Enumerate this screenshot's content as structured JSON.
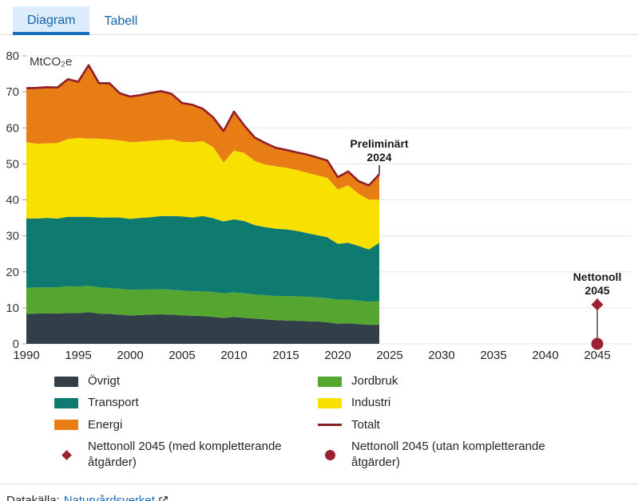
{
  "tabs": {
    "diagram": "Diagram",
    "tabell": "Tabell"
  },
  "colors": {
    "tab_blue": "#1565ad",
    "tab_active_bg": "#ddecfa",
    "tab_underline": "#1b6fbf",
    "link_blue": "#1a6cb5",
    "grid": "#e4e6e8",
    "total_red": "#8e2029",
    "marker_red": "#9b2233"
  },
  "chart_data": {
    "type": "area",
    "stacked": true,
    "title": "",
    "unit_label": "MtCO₂e",
    "xlabel": "",
    "ylabel": "MtCO₂e",
    "xlim": [
      1990,
      2046
    ],
    "ylim": [
      0,
      80
    ],
    "grid": true,
    "x_ticks": [
      1990,
      1995,
      2000,
      2005,
      2010,
      2015,
      2020,
      2025,
      2030,
      2035,
      2040,
      2045
    ],
    "y_ticks": [
      0,
      10,
      20,
      30,
      40,
      50,
      60,
      70,
      80
    ],
    "x": [
      1990,
      1991,
      1992,
      1993,
      1994,
      1995,
      1996,
      1997,
      1998,
      1999,
      2000,
      2001,
      2002,
      2003,
      2004,
      2005,
      2006,
      2007,
      2008,
      2009,
      2010,
      2011,
      2012,
      2013,
      2014,
      2015,
      2016,
      2017,
      2018,
      2019,
      2020,
      2021,
      2022,
      2023,
      2024
    ],
    "series": [
      {
        "id": "ovrigt",
        "name": "Övrigt",
        "color": "#333f48",
        "values": [
          8.3,
          8.4,
          8.5,
          8.4,
          8.6,
          8.5,
          8.8,
          8.4,
          8.3,
          8.1,
          7.9,
          8.0,
          8.1,
          8.2,
          8.1,
          7.9,
          7.8,
          7.7,
          7.5,
          7.2,
          7.5,
          7.2,
          7.0,
          6.8,
          6.6,
          6.5,
          6.4,
          6.3,
          6.2,
          6.0,
          5.6,
          5.7,
          5.5,
          5.3,
          5.3
        ]
      },
      {
        "id": "jordbruk",
        "name": "Jordbruk",
        "color": "#55a630",
        "values": [
          7.3,
          7.3,
          7.2,
          7.3,
          7.4,
          7.4,
          7.3,
          7.3,
          7.2,
          7.2,
          7.1,
          7.1,
          7.0,
          7.0,
          6.9,
          6.9,
          6.8,
          6.9,
          6.9,
          6.8,
          6.8,
          6.8,
          6.7,
          6.7,
          6.7,
          6.8,
          6.8,
          6.8,
          6.7,
          6.7,
          6.7,
          6.6,
          6.5,
          6.4,
          6.6
        ]
      },
      {
        "id": "transport",
        "name": "Transport",
        "color": "#0f7b70",
        "values": [
          19.2,
          19.1,
          19.3,
          19.1,
          19.3,
          19.4,
          19.2,
          19.4,
          19.6,
          19.8,
          19.7,
          19.9,
          20.1,
          20.3,
          20.5,
          20.6,
          20.5,
          20.9,
          20.5,
          20.0,
          20.3,
          20.1,
          19.3,
          18.9,
          18.7,
          18.5,
          18.2,
          17.7,
          17.3,
          16.9,
          15.5,
          15.8,
          15.2,
          14.5,
          16.2
        ]
      },
      {
        "id": "industri",
        "name": "Industri",
        "color": "#f8e000",
        "values": [
          21.2,
          20.8,
          20.7,
          21.0,
          21.6,
          21.9,
          21.7,
          21.9,
          21.7,
          21.4,
          21.3,
          21.2,
          21.2,
          21.1,
          21.3,
          20.7,
          20.9,
          20.8,
          19.8,
          16.4,
          19.1,
          18.9,
          17.8,
          17.4,
          17.3,
          17.1,
          16.9,
          16.8,
          16.6,
          16.5,
          15.1,
          15.9,
          14.5,
          13.8,
          12.0
        ]
      },
      {
        "id": "energi",
        "name": "Energi",
        "color": "#e87d15",
        "values": [
          15.0,
          15.5,
          15.6,
          15.4,
          16.6,
          15.6,
          20.4,
          15.4,
          15.6,
          13.1,
          12.7,
          12.9,
          13.3,
          13.6,
          12.6,
          10.8,
          10.4,
          9.0,
          8.2,
          8.7,
          10.8,
          7.6,
          6.5,
          6.0,
          5.2,
          5.0,
          4.9,
          5.0,
          5.0,
          4.8,
          3.4,
          3.9,
          3.5,
          4.0,
          7.0
        ]
      }
    ],
    "total_line": {
      "name": "Totalt",
      "color": "#8e2029"
    },
    "annotations": {
      "preliminary": {
        "line1": "Preliminärt",
        "line2": "2024",
        "year": 2024
      },
      "target": {
        "line1": "Nettonoll",
        "line2": "2045",
        "year": 2045,
        "diamond_value": 10.9,
        "circle_value": 0,
        "color": "#9b2233"
      }
    }
  },
  "legend": {
    "columns": [
      [
        {
          "label": "Övrigt",
          "color": "#333f48",
          "swatch": "rect"
        },
        {
          "label": "Transport",
          "color": "#0f7b70",
          "swatch": "rect"
        },
        {
          "label": "Energi",
          "color": "#e87d15",
          "swatch": "rect"
        },
        {
          "label": "Nettonoll 2045 (med kompletterande åtgärder)",
          "color": "#9b2233",
          "swatch": "diamond"
        }
      ],
      [
        {
          "label": "Jordbruk",
          "color": "#55a630",
          "swatch": "rect"
        },
        {
          "label": "Industri",
          "color": "#f8e000",
          "swatch": "rect"
        },
        {
          "label": "Totalt",
          "color": "#8e2029",
          "swatch": "line"
        },
        {
          "label": "Nettonoll 2045 (utan kompletterande åtgärder)",
          "color": "#9b2233",
          "swatch": "circle"
        }
      ]
    ]
  },
  "source": {
    "prefix": "Datakälla:",
    "link_label": "Naturvårdsverket",
    "link_icon": "external-link"
  }
}
